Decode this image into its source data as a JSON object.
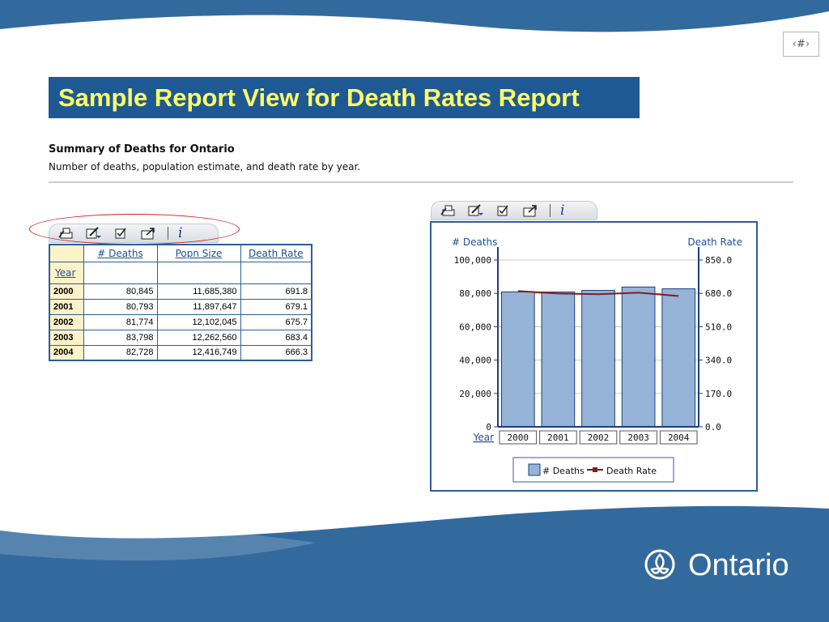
{
  "slide": {
    "number_label": "‹#›",
    "title": "Sample Report View for Death Rates Report",
    "brand": "Ontario",
    "colors": {
      "banner": "#1f5994",
      "wave": "#336a9e",
      "title_text": "#ffff66",
      "accent_oval": "#d21e1e"
    }
  },
  "report": {
    "heading": "Summary of Deaths for Ontario",
    "subheading": "Number of deaths, population estimate, and death rate by year."
  },
  "toolbar": {
    "icons": [
      "print-icon",
      "edit-dropdown-icon",
      "checkbox-icon",
      "export-icon",
      "info-icon"
    ],
    "info_label": "i"
  },
  "table": {
    "columns": [
      "# Deaths",
      "Popn Size",
      "Death Rate"
    ],
    "row_header": "Year",
    "rows": [
      {
        "year": "2000",
        "deaths": "80,845",
        "popn": "11,685,380",
        "rate": "691.8"
      },
      {
        "year": "2001",
        "deaths": "80,793",
        "popn": "11,897,647",
        "rate": "679.1"
      },
      {
        "year": "2002",
        "deaths": "81,774",
        "popn": "12,102,045",
        "rate": "675.7"
      },
      {
        "year": "2003",
        "deaths": "83,798",
        "popn": "12,262,560",
        "rate": "683.4"
      },
      {
        "year": "2004",
        "deaths": "82,728",
        "popn": "12,416,749",
        "rate": "666.3"
      }
    ]
  },
  "chart_data": {
    "type": "bar",
    "categories": [
      "2000",
      "2001",
      "2002",
      "2003",
      "2004"
    ],
    "series": [
      {
        "name": "# Deaths",
        "kind": "bar",
        "axis": "left",
        "color": "#95b3d7",
        "values": [
          80845,
          80793,
          81774,
          83798,
          82728
        ]
      },
      {
        "name": "Death Rate",
        "kind": "line",
        "axis": "right",
        "color": "#8b1a1a",
        "values": [
          691.8,
          679.1,
          675.7,
          683.4,
          666.3
        ]
      }
    ],
    "xlabel": "Year",
    "ylabel_left": "# Deaths",
    "ylabel_right": "Death Rate",
    "ylim_left": [
      0,
      100000
    ],
    "ylim_right": [
      0,
      850
    ],
    "left_ticks": [
      "0",
      "20,000",
      "40,000",
      "60,000",
      "80,000",
      "100,000"
    ],
    "right_ticks": [
      "0.0",
      "170.0",
      "340.0",
      "510.0",
      "680.0",
      "850.0"
    ],
    "grid": true,
    "legend_position": "bottom"
  }
}
